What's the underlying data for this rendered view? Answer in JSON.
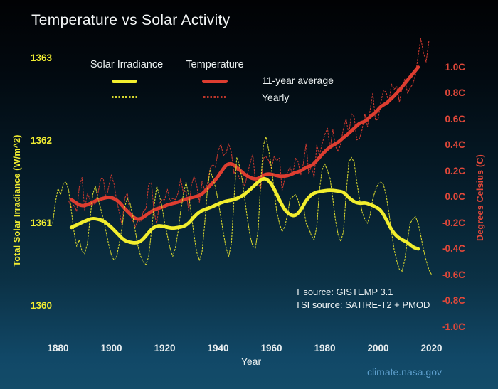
{
  "chart_data": {
    "type": "line",
    "title": "Temperature vs Solar Activity",
    "x_axis": {
      "label": "Year",
      "ticks": [
        1880,
        1900,
        1920,
        1940,
        1960,
        1980,
        2000,
        2020
      ],
      "range": [
        1875,
        2023
      ]
    },
    "y_left": {
      "label": "Total Solar Irradiance (W/m^2)",
      "ticks": [
        1363,
        1362,
        1361,
        1360
      ],
      "color": "#f0ec31",
      "units": "W/m^2"
    },
    "y_right": {
      "label": "Degrees Celsius (C)",
      "tick_labels": [
        "1.0C",
        "0.8C",
        "0.6C",
        "0.4C",
        "0.2C",
        "0.0C",
        "-0.2C",
        "-0.4C",
        "-0.6C",
        "-0.8C",
        "-1.0C"
      ],
      "tick_values": [
        1.0,
        0.8,
        0.6,
        0.4,
        0.2,
        0.0,
        -0.2,
        -0.4,
        -0.6,
        -0.8,
        -1.0
      ],
      "color": "#e1483a"
    },
    "legend": {
      "groups": [
        {
          "label": "Solar Irradiance",
          "color": "#f2ee2e",
          "dash_color": "#d6d62e"
        },
        {
          "label": "Temperature",
          "color": "#dd3d30",
          "dash_color": "#bc362b"
        }
      ],
      "row_labels": [
        "11-year average",
        "Yearly"
      ]
    },
    "series": [
      {
        "name": "Temperature Yearly",
        "axis": "right",
        "style": "yearly",
        "color": "#c8382e",
        "start_year": 1884,
        "step": 1,
        "values": [
          -0.03,
          -0.08,
          -0.06,
          -0.11,
          0.08,
          0.15,
          -0.1,
          0.03,
          -0.02,
          -0.06,
          -0.05,
          0.03,
          0.14,
          0.14,
          -0.02,
          0.08,
          0.17,
          0.1,
          -0.03,
          -0.12,
          -0.22,
          -0.01,
          0.03,
          -0.14,
          -0.18,
          -0.23,
          -0.18,
          -0.19,
          -0.11,
          -0.09,
          0.1,
          0.11,
          -0.11,
          -0.21,
          -0.05,
          -0.02,
          -0.02,
          0.06,
          -0.03,
          -0.01,
          -0.02,
          0.03,
          0.14,
          0.03,
          0.05,
          -0.11,
          0.09,
          0.16,
          0.09,
          -0.04,
          0.12,
          0.05,
          0.1,
          0.22,
          0.25,
          0.23,
          0.35,
          0.41,
          0.32,
          0.34,
          0.41,
          0.34,
          0.18,
          0.22,
          0.14,
          0.14,
          0.08,
          0.18,
          0.26,
          0.33,
          0.12,
          0.11,
          0.06,
          0.3,
          0.31,
          0.28,
          0.22,
          0.31,
          0.28,
          0.3,
          0.05,
          0.14,
          0.19,
          0.23,
          0.17,
          0.3,
          0.27,
          0.17,
          0.26,
          0.41,
          0.18,
          0.24,
          0.15,
          0.4,
          0.32,
          0.41,
          0.48,
          0.53,
          0.37,
          0.52,
          0.39,
          0.35,
          0.41,
          0.53,
          0.6,
          0.48,
          0.64,
          0.62,
          0.44,
          0.45,
          0.52,
          0.64,
          0.54,
          0.67,
          0.8,
          0.59,
          0.6,
          0.73,
          0.82,
          0.81,
          0.72,
          0.87,
          0.83,
          0.85,
          0.73,
          0.85,
          0.91,
          0.8,
          0.84,
          0.87,
          0.94,
          1.09,
          1.22,
          1.11,
          1.04,
          1.2
        ]
      },
      {
        "name": "Temperature 11-year average",
        "axis": "right",
        "style": "average",
        "color": "#dd3d30",
        "start_year": 1885,
        "step": 2,
        "values": [
          -0.02,
          -0.05,
          -0.07,
          -0.06,
          -0.04,
          -0.02,
          -0.01,
          0.0,
          -0.01,
          -0.04,
          -0.09,
          -0.13,
          -0.17,
          -0.17,
          -0.14,
          -0.11,
          -0.09,
          -0.08,
          -0.06,
          -0.05,
          -0.04,
          -0.02,
          -0.01,
          0.0,
          0.01,
          0.04,
          0.09,
          0.13,
          0.19,
          0.25,
          0.26,
          0.23,
          0.19,
          0.16,
          0.14,
          0.14,
          0.17,
          0.18,
          0.17,
          0.16,
          0.16,
          0.17,
          0.19,
          0.2,
          0.23,
          0.24,
          0.28,
          0.33,
          0.37,
          0.4,
          0.42,
          0.46,
          0.49,
          0.53,
          0.57,
          0.58,
          0.62,
          0.65,
          0.7,
          0.72,
          0.76,
          0.8,
          0.85,
          0.9,
          0.95,
          1.0
        ]
      },
      {
        "name": "Solar Irradiance Yearly",
        "axis": "left",
        "style": "yearly",
        "color": "#d6d62e",
        "start_year": 1878,
        "step": 1,
        "values": [
          1361.0,
          1361.25,
          1361.42,
          1361.35,
          1361.48,
          1361.5,
          1361.4,
          1361.15,
          1360.9,
          1360.72,
          1360.8,
          1360.66,
          1360.63,
          1360.75,
          1361.05,
          1361.35,
          1361.45,
          1361.3,
          1361.18,
          1361.05,
          1360.9,
          1360.74,
          1360.62,
          1360.55,
          1360.6,
          1360.76,
          1360.95,
          1361.2,
          1361.3,
          1361.24,
          1361.1,
          1360.9,
          1360.72,
          1360.6,
          1360.53,
          1360.5,
          1360.6,
          1360.9,
          1361.2,
          1361.45,
          1361.34,
          1361.2,
          1361.0,
          1360.85,
          1360.7,
          1360.6,
          1360.7,
          1360.9,
          1361.15,
          1361.35,
          1361.5,
          1361.34,
          1361.1,
          1360.85,
          1360.65,
          1360.55,
          1360.65,
          1361.0,
          1361.4,
          1361.65,
          1361.55,
          1361.44,
          1361.28,
          1361.08,
          1360.88,
          1360.7,
          1360.6,
          1360.76,
          1361.3,
          1361.8,
          1361.7,
          1361.54,
          1361.3,
          1361.05,
          1360.85,
          1360.72,
          1360.7,
          1360.92,
          1361.5,
          1361.95,
          1362.05,
          1361.88,
          1361.68,
          1361.4,
          1361.14,
          1361.0,
          1360.9,
          1360.96,
          1361.1,
          1361.3,
          1361.32,
          1361.35,
          1361.28,
          1361.14,
          1361.2,
          1361.0,
          1360.94,
          1360.85,
          1360.8,
          1360.96,
          1361.4,
          1361.65,
          1361.72,
          1361.64,
          1361.54,
          1361.3,
          1361.04,
          1360.86,
          1360.78,
          1360.9,
          1361.35,
          1361.74,
          1361.8,
          1361.74,
          1361.5,
          1361.3,
          1361.14,
          1361.05,
          1361.0,
          1361.1,
          1361.3,
          1361.4,
          1361.48,
          1361.5,
          1361.47,
          1361.34,
          1361.14,
          1360.9,
          1360.68,
          1360.54,
          1360.44,
          1360.42,
          1360.56,
          1360.8,
          1361.0,
          1361.05,
          1361.08,
          1361.0,
          1360.85,
          1360.68,
          1360.55,
          1360.44,
          1360.38
        ]
      },
      {
        "name": "Solar Irradiance 11-year average",
        "axis": "left",
        "style": "average",
        "color": "#f2ee2e",
        "start_year": 1885,
        "step": 2,
        "values": [
          1360.95,
          1360.98,
          1361.01,
          1361.04,
          1361.06,
          1361.05,
          1361.03,
          1360.98,
          1360.92,
          1360.85,
          1360.79,
          1360.77,
          1360.76,
          1360.78,
          1360.85,
          1360.93,
          1360.97,
          1360.97,
          1360.95,
          1360.94,
          1360.95,
          1360.96,
          1361.0,
          1361.08,
          1361.14,
          1361.17,
          1361.19,
          1361.22,
          1361.25,
          1361.27,
          1361.28,
          1361.3,
          1361.33,
          1361.38,
          1361.44,
          1361.5,
          1361.55,
          1361.52,
          1361.42,
          1361.28,
          1361.16,
          1361.1,
          1361.09,
          1361.16,
          1361.28,
          1361.35,
          1361.38,
          1361.39,
          1361.4,
          1361.4,
          1361.39,
          1361.38,
          1361.31,
          1361.26,
          1361.24,
          1361.25,
          1361.23,
          1361.2,
          1361.16,
          1361.05,
          1360.92,
          1360.84,
          1360.8,
          1360.77,
          1360.71,
          1360.69
        ]
      }
    ],
    "annotations": {
      "source_line_1": "T source: GISTEMP 3.1",
      "source_line_2": "TSI source: SATIRE-T2 + PMOD"
    },
    "footer": {
      "link": "climate.nasa.gov",
      "link_color": "#5d9fcd"
    }
  }
}
